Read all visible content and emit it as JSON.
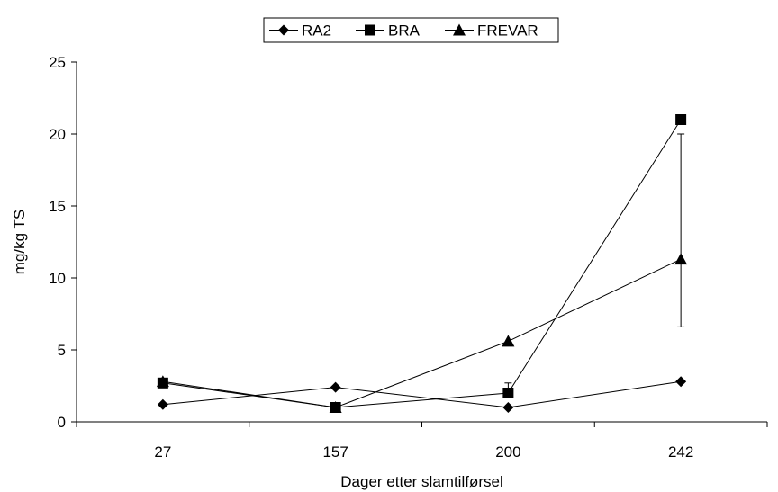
{
  "chart_data": {
    "type": "line",
    "title": "",
    "xlabel": "Dager etter slamtilførsel",
    "ylabel": "mg/kg TS",
    "categories": [
      "27",
      "157",
      "200",
      "242"
    ],
    "ylim": [
      0,
      25
    ],
    "yticks": [
      0,
      5,
      10,
      15,
      20,
      25
    ],
    "grid": false,
    "legend_position": "top",
    "series": [
      {
        "name": "RA2",
        "marker": "diamond",
        "values": [
          1.2,
          2.4,
          1.0,
          2.8
        ]
      },
      {
        "name": "BRA",
        "marker": "square",
        "values": [
          2.7,
          1.0,
          2.0,
          21.0
        ]
      },
      {
        "name": "FREVAR",
        "marker": "triangle",
        "values": [
          2.8,
          1.0,
          5.6,
          11.3
        ]
      }
    ],
    "error_bars": [
      {
        "series": "BRA",
        "category": "200",
        "low": 2.0,
        "high": 2.7
      },
      {
        "series": "FREVAR",
        "category": "242",
        "low": 6.6,
        "high": 20.0
      }
    ],
    "colors": {
      "line": "#000000",
      "marker": "#000000"
    }
  }
}
